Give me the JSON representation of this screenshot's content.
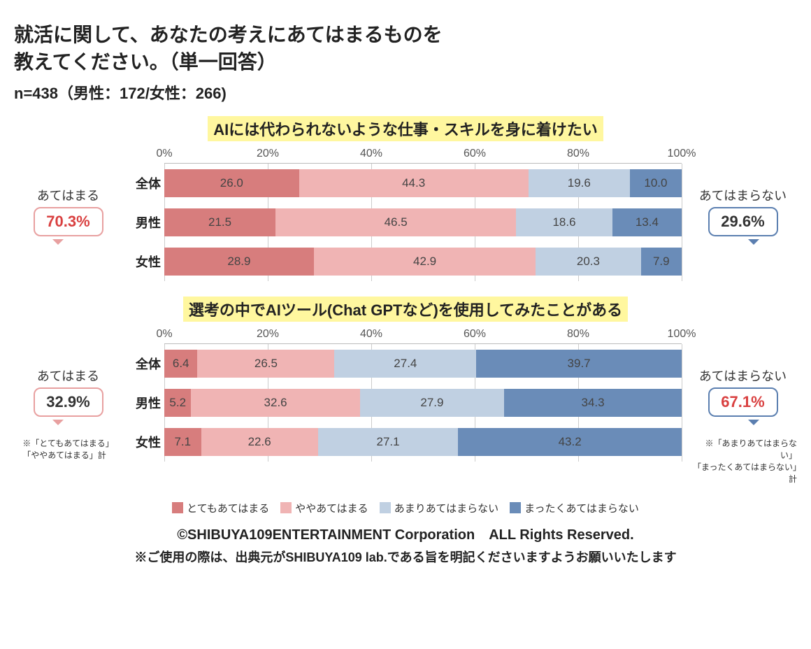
{
  "title_line1": "就活に関して、あなたの考えにあてはまるものを",
  "title_line2": "教えてください。（単一回答）",
  "subtitle": "n=438（男性：172/女性：266)",
  "axis_ticks": [
    "0%",
    "20%",
    "40%",
    "60%",
    "80%",
    "100%"
  ],
  "axis_positions": [
    0,
    20,
    40,
    60,
    80,
    100
  ],
  "colors": {
    "seg1": "#d77d7d",
    "seg2": "#f0b4b4",
    "seg3": "#c0d0e2",
    "seg4": "#6a8cb8",
    "highlight": "#fff79f",
    "grid": "#cccccc",
    "background": "#ffffff"
  },
  "legend_labels": [
    "とてもあてはまる",
    "ややあてはまる",
    "あまりあてはまらない",
    "まったくあてはまらない"
  ],
  "row_labels": [
    "全体",
    "男性",
    "女性"
  ],
  "chart1": {
    "title": "AIには代わられないような仕事・スキルを身に着けたい",
    "left_label": "あてはまる",
    "left_value": "70.3%",
    "right_label": "あてはまらない",
    "right_value": "29.6%",
    "rows": [
      {
        "values": [
          26.0,
          44.3,
          19.6,
          10.0
        ],
        "labels": [
          "26.0",
          "44.3",
          "19.6",
          "10.0"
        ]
      },
      {
        "values": [
          21.5,
          46.5,
          18.6,
          13.4
        ],
        "labels": [
          "21.5",
          "46.5",
          "18.6",
          "13.4"
        ]
      },
      {
        "values": [
          28.9,
          42.9,
          20.3,
          7.9
        ],
        "labels": [
          "28.9",
          "42.9",
          "20.3",
          "7.9"
        ]
      }
    ]
  },
  "chart2": {
    "title": "選考の中でAIツール(Chat GPTなど)を使用してみたことがある",
    "left_label": "あてはまる",
    "left_value": "32.9%",
    "right_label": "あてはまらない",
    "right_value": "67.1%",
    "rows": [
      {
        "values": [
          6.4,
          26.5,
          27.4,
          39.7
        ],
        "labels": [
          "6.4",
          "26.5",
          "27.4",
          "39.7"
        ]
      },
      {
        "values": [
          5.2,
          32.6,
          27.9,
          34.3
        ],
        "labels": [
          "5.2",
          "32.6",
          "27.9",
          "34.3"
        ]
      },
      {
        "values": [
          7.1,
          22.6,
          27.1,
          43.2
        ],
        "labels": [
          "7.1",
          "22.6",
          "27.1",
          "43.2"
        ]
      }
    ]
  },
  "left_note_line1": "※「とてもあてはまる」",
  "left_note_line2": "「ややあてはまる」計",
  "right_note_line1": "※「あまりあてはまらない」",
  "right_note_line2": "「まったくあてはまらない」計",
  "footer1": "©SHIBUYA109ENTERTAINMENT Corporation　ALL Rights Reserved.",
  "footer2": "※ご使用の際は、出典元がSHIBUYA109 lab.である旨を明記くださいますようお願いいたします"
}
